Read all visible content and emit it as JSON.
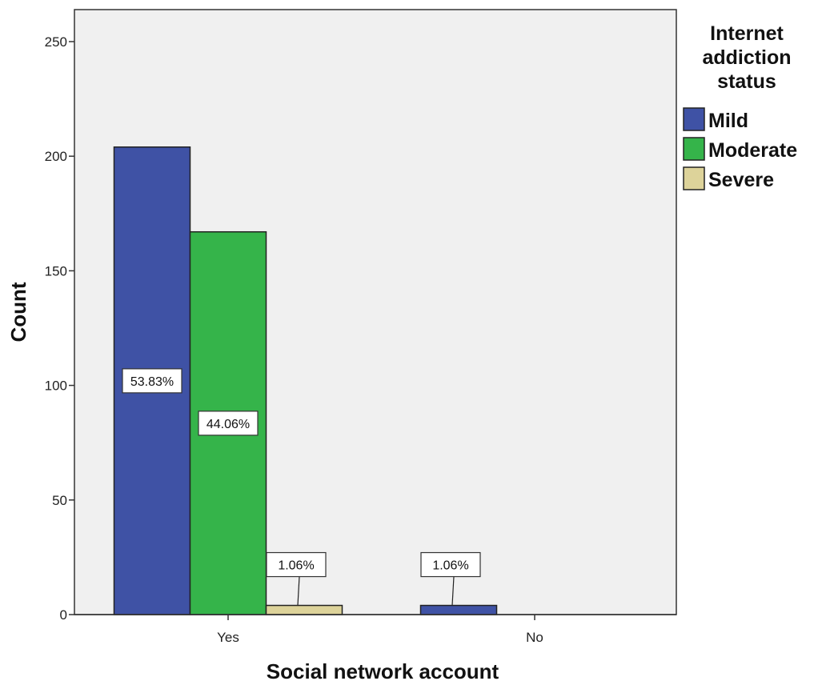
{
  "chart_data": {
    "type": "bar",
    "title": "",
    "xlabel": "Social network account",
    "ylabel": "Count",
    "categories": [
      "Yes",
      "No"
    ],
    "ylim": [
      0,
      265
    ],
    "yticks": [
      0,
      50,
      100,
      150,
      200,
      250
    ],
    "grid": false,
    "legend": {
      "title": "Internet addiction status",
      "placement": "right"
    },
    "series": [
      {
        "name": "Mild",
        "color": "#3f52a5",
        "values": [
          204,
          4
        ],
        "labels": [
          "53.83%",
          "1.06%"
        ]
      },
      {
        "name": "Moderate",
        "color": "#35b44a",
        "values": [
          167,
          0
        ],
        "labels": [
          "44.06%",
          null
        ]
      },
      {
        "name": "Severe",
        "color": "#ddd39a",
        "values": [
          4,
          0
        ],
        "labels": [
          "1.06%",
          null
        ]
      }
    ]
  },
  "legend_title_lines": [
    "Internet",
    "addiction",
    "status"
  ]
}
